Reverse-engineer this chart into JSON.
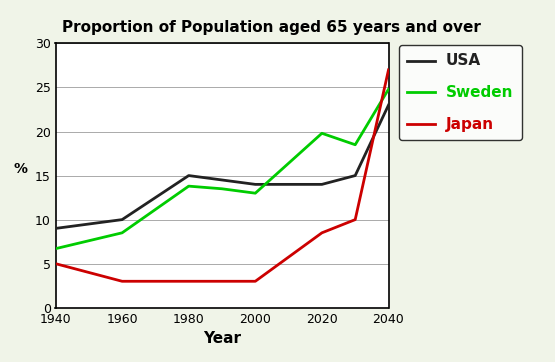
{
  "title": "Proportion of Population aged 65 years and over",
  "xlabel": "Year",
  "ylabel": "%",
  "years": [
    1940,
    1960,
    1980,
    1990,
    2000,
    2020,
    2030,
    2040
  ],
  "usa": [
    9,
    10,
    15,
    14.5,
    14,
    14,
    15,
    23
  ],
  "sweden": [
    6.7,
    8.5,
    13.8,
    13.5,
    13,
    19.8,
    18.5,
    24.8
  ],
  "japan": [
    5,
    3,
    3,
    3,
    3,
    8.5,
    10,
    27
  ],
  "usa_color": "#222222",
  "sweden_color": "#00cc00",
  "japan_color": "#cc0000",
  "ylim": [
    0,
    30
  ],
  "xlim": [
    1940,
    2040
  ],
  "xticks": [
    1940,
    1960,
    1980,
    2000,
    2020,
    2040
  ],
  "yticks": [
    0,
    5,
    10,
    15,
    20,
    25,
    30
  ],
  "outer_bg": "#f0f4e8",
  "plot_bg": "#ffffff",
  "legend_labels": [
    "USA",
    "Sweden",
    "Japan"
  ],
  "grid_color": "#aaaaaa",
  "linewidth": 2.0
}
